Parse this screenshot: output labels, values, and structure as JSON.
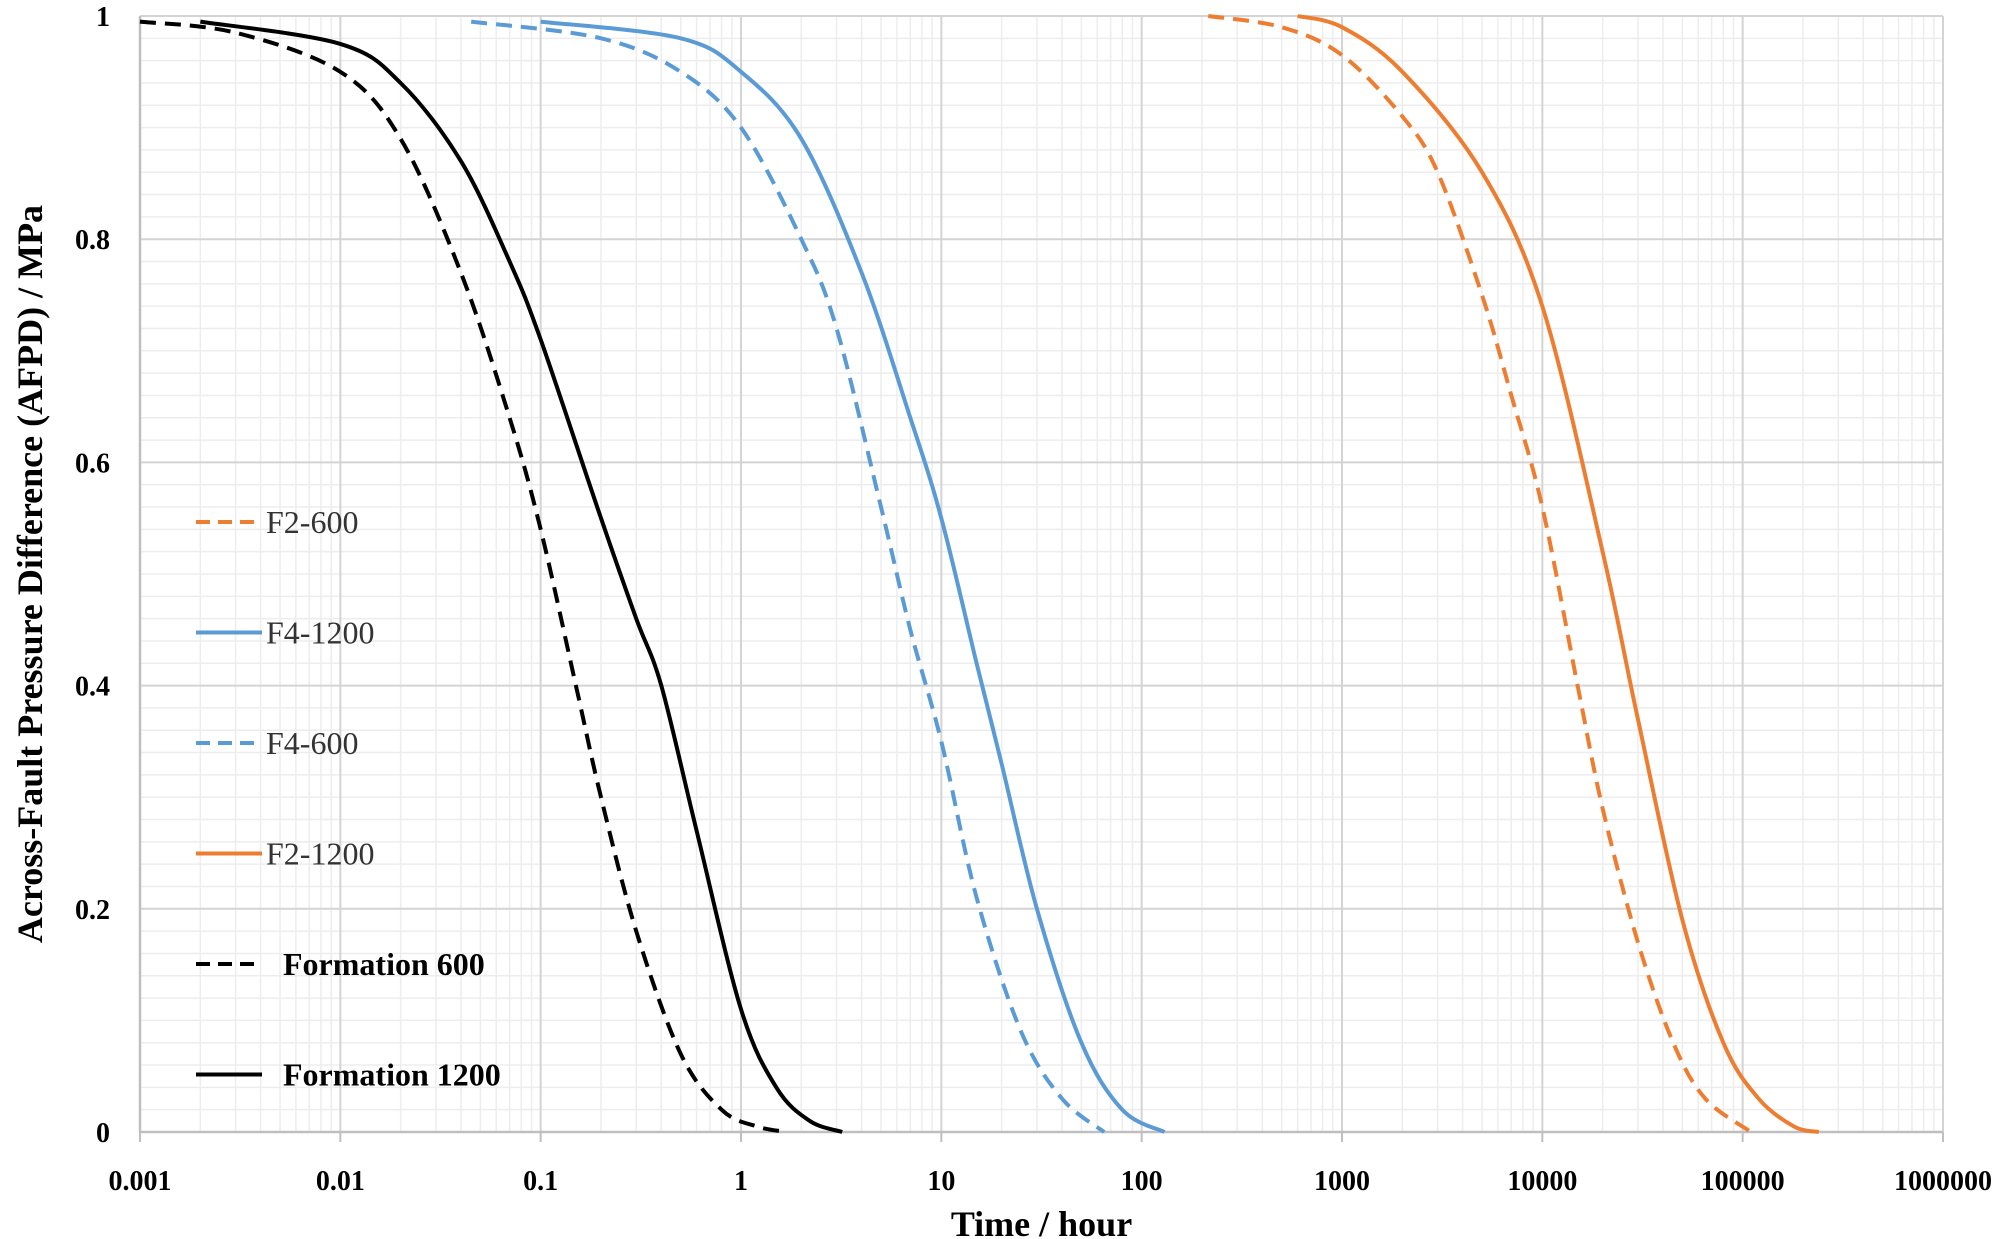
{
  "chart_data": {
    "type": "line",
    "title": "",
    "xlabel": "Time / hour",
    "ylabel": "Across-Fault Pressure Difference (AFPD) / MPa",
    "xscale": "log",
    "xlim": [
      0.001,
      1000000
    ],
    "ylim": [
      0,
      1
    ],
    "grid": true,
    "x_tick_labels": [
      "0.001",
      "0.01",
      "0.1",
      "1",
      "10",
      "100",
      "1000",
      "10000",
      "100000",
      "1000000"
    ],
    "y_tick_labels": [
      "0",
      "0.2",
      "0.4",
      "0.6",
      "0.8",
      "1"
    ],
    "legend_position": "left",
    "series": [
      {
        "name": "F2-600",
        "color": "#ED7D31",
        "dash": true,
        "bold": false,
        "x": [
          215,
          500,
          1000,
          2000,
          3000,
          5000,
          7000,
          10000,
          15000,
          20000,
          30000,
          45000,
          65000,
          110000
        ],
        "y": [
          1.0,
          0.99,
          0.965,
          0.91,
          0.86,
          0.75,
          0.66,
          0.56,
          0.4,
          0.29,
          0.17,
          0.08,
          0.03,
          0.0
        ]
      },
      {
        "name": "F4-1200",
        "color": "#5B9BD5",
        "dash": false,
        "bold": false,
        "x": [
          0.1,
          0.5,
          1,
          2,
          4,
          7,
          10,
          15,
          20,
          30,
          50,
          80,
          130
        ],
        "y": [
          0.995,
          0.98,
          0.95,
          0.89,
          0.77,
          0.64,
          0.55,
          0.42,
          0.33,
          0.2,
          0.08,
          0.02,
          0.0
        ]
      },
      {
        "name": "F4-600",
        "color": "#5B9BD5",
        "dash": true,
        "bold": false,
        "x": [
          0.045,
          0.2,
          0.5,
          1,
          2,
          3,
          5,
          7,
          10,
          15,
          25,
          40,
          65
        ],
        "y": [
          0.995,
          0.98,
          0.95,
          0.9,
          0.8,
          0.72,
          0.56,
          0.45,
          0.35,
          0.21,
          0.09,
          0.03,
          0.0
        ]
      },
      {
        "name": "F2-1200",
        "color": "#ED7D31",
        "dash": false,
        "bold": false,
        "x": [
          600,
          1000,
          2000,
          5000,
          10000,
          20000,
          30000,
          50000,
          80000,
          120000,
          180000,
          240000
        ],
        "y": [
          1.0,
          0.99,
          0.95,
          0.86,
          0.74,
          0.52,
          0.37,
          0.19,
          0.08,
          0.03,
          0.005,
          0.0
        ]
      },
      {
        "name": "Formation 600",
        "color": "#000000",
        "dash": true,
        "bold": true,
        "x": [
          0.001,
          0.003,
          0.01,
          0.02,
          0.04,
          0.07,
          0.1,
          0.15,
          0.2,
          0.3,
          0.5,
          0.8,
          1.2,
          1.7
        ],
        "y": [
          0.995,
          0.985,
          0.95,
          0.89,
          0.77,
          0.64,
          0.54,
          0.4,
          0.3,
          0.18,
          0.07,
          0.02,
          0.005,
          0.0
        ]
      },
      {
        "name": "Formation 1200",
        "color": "#000000",
        "dash": false,
        "bold": true,
        "x": [
          0.002,
          0.01,
          0.02,
          0.04,
          0.07,
          0.1,
          0.2,
          0.3,
          0.4,
          0.6,
          1,
          1.5,
          2.2,
          3.2
        ],
        "y": [
          0.995,
          0.975,
          0.94,
          0.87,
          0.78,
          0.71,
          0.55,
          0.46,
          0.4,
          0.27,
          0.11,
          0.04,
          0.01,
          0.0
        ]
      }
    ]
  }
}
